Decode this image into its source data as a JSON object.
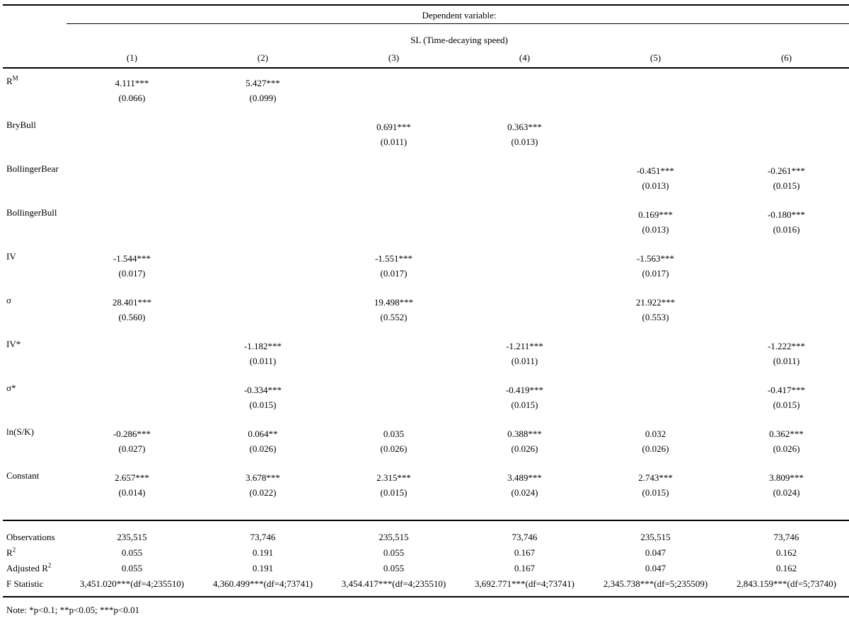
{
  "table": {
    "dependent_variable_label": "Dependent variable:",
    "dependent_variable_name": "SL (Time-decaying speed)",
    "column_headers": [
      "(1)",
      "(2)",
      "(3)",
      "(4)",
      "(5)",
      "(6)"
    ],
    "coefficients": [
      {
        "label": "R",
        "label_sup": "M",
        "cells": [
          {
            "est": "4.111***",
            "se": "(0.066)"
          },
          {
            "est": "5.427***",
            "se": "(0.099)"
          },
          null,
          null,
          null,
          null
        ]
      },
      {
        "label": "BryBull",
        "cells": [
          null,
          null,
          {
            "est": "0.691***",
            "se": "(0.011)"
          },
          {
            "est": "0.363***",
            "se": "(0.013)"
          },
          null,
          null
        ]
      },
      {
        "label": "BollingerBear",
        "cells": [
          null,
          null,
          null,
          null,
          {
            "est": "-0.451***",
            "se": "(0.013)"
          },
          {
            "est": "-0.261***",
            "se": "(0.015)"
          }
        ]
      },
      {
        "label": "BollingerBull",
        "cells": [
          null,
          null,
          null,
          null,
          {
            "est": "0.169***",
            "se": "(0.013)"
          },
          {
            "est": "-0.180***",
            "se": "(0.016)"
          }
        ]
      },
      {
        "label": "IV",
        "cells": [
          {
            "est": "-1.544***",
            "se": "(0.017)"
          },
          null,
          {
            "est": "-1.551***",
            "se": "(0.017)"
          },
          null,
          {
            "est": "-1.563***",
            "se": "(0.017)"
          },
          null
        ]
      },
      {
        "label": "σ",
        "cells": [
          {
            "est": "28.401***",
            "se": "(0.560)"
          },
          null,
          {
            "est": "19.498***",
            "se": "(0.552)"
          },
          null,
          {
            "est": "21.922***",
            "se": "(0.553)"
          },
          null
        ]
      },
      {
        "label": "IV*",
        "cells": [
          null,
          {
            "est": "-1.182***",
            "se": "(0.011)"
          },
          null,
          {
            "est": "-1.211***",
            "se": "(0.011)"
          },
          null,
          {
            "est": "-1.222***",
            "se": "(0.011)"
          }
        ]
      },
      {
        "label": "σ*",
        "cells": [
          null,
          {
            "est": "-0.334***",
            "se": "(0.015)"
          },
          null,
          {
            "est": "-0.419***",
            "se": "(0.015)"
          },
          null,
          {
            "est": "-0.417***",
            "se": "(0.015)"
          }
        ]
      },
      {
        "label": "ln(S/K)",
        "cells": [
          {
            "est": "-0.286***",
            "se": "(0.027)"
          },
          {
            "est": "0.064**",
            "se": "(0.026)"
          },
          {
            "est": "0.035",
            "se": "(0.026)"
          },
          {
            "est": "0.388***",
            "se": "(0.026)"
          },
          {
            "est": "0.032",
            "se": "(0.026)"
          },
          {
            "est": "0.362***",
            "se": "(0.026)"
          }
        ]
      },
      {
        "label": "Constant",
        "cells": [
          {
            "est": "2.657***",
            "se": "(0.014)"
          },
          {
            "est": "3.678***",
            "se": "(0.022)"
          },
          {
            "est": "2.315***",
            "se": "(0.015)"
          },
          {
            "est": "3.489***",
            "se": "(0.024)"
          },
          {
            "est": "2.743***",
            "se": "(0.015)"
          },
          {
            "est": "3.809***",
            "se": "(0.024)"
          }
        ]
      }
    ],
    "statistics": [
      {
        "label": "Observations",
        "values": [
          "235,515",
          "73,746",
          "235,515",
          "73,746",
          "235,515",
          "73,746"
        ]
      },
      {
        "label": "R",
        "label_sup": "2",
        "values": [
          "0.055",
          "0.191",
          "0.055",
          "0.167",
          "0.047",
          "0.162"
        ]
      },
      {
        "label": "Adjusted R",
        "label_sup": "2",
        "values": [
          "0.055",
          "0.191",
          "0.055",
          "0.167",
          "0.047",
          "0.162"
        ]
      },
      {
        "label": "F Statistic",
        "values": [
          "3,451.020***(df=4;235510)",
          "4,360.499***(df=4;73741)",
          "3,454.417***(df=4;235510)",
          "3,692.771***(df=4;73741)",
          "2,345.738***(df=5;235509)",
          "2,843.159***(df=5;73740)"
        ]
      }
    ],
    "note": "Note: *p<0.1; **p<0.05; ***p<0.01"
  }
}
